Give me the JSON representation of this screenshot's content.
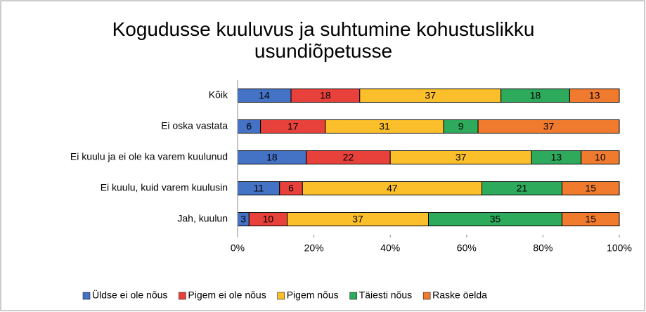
{
  "chart_data": {
    "type": "stacked-bar-horizontal",
    "title": "Kogudusse kuuluvus ja suhtumine kohustuslikku usundiõpetusse",
    "categories": [
      "Kõik",
      "Ei oska vastata",
      "Ei kuulu ja ei ole ka varem kuulunud",
      "Ei kuulu, kuid varem kuulusin",
      "Jah, kuulun"
    ],
    "series": [
      {
        "name": "Üldse ei ole nõus",
        "color": "#4472c4",
        "values": [
          14,
          6,
          18,
          11,
          3
        ]
      },
      {
        "name": "Pigem ei ole nõus",
        "color": "#e8413b",
        "values": [
          18,
          17,
          22,
          6,
          10
        ]
      },
      {
        "name": "Pigem nõus",
        "color": "#fbbf2b",
        "values": [
          37,
          31,
          37,
          47,
          37
        ]
      },
      {
        "name": "Täiesti nõus",
        "color": "#2eaa5c",
        "values": [
          18,
          9,
          13,
          21,
          35
        ]
      },
      {
        "name": "Raske öelda",
        "color": "#f07b2f",
        "values": [
          13,
          37,
          10,
          15,
          15
        ]
      }
    ],
    "xlim": [
      0,
      100
    ],
    "xticks": [
      {
        "value": 0,
        "label": "0%"
      },
      {
        "value": 20,
        "label": "20%"
      },
      {
        "value": 40,
        "label": "40%"
      },
      {
        "value": 60,
        "label": "60%"
      },
      {
        "value": 80,
        "label": "80%"
      },
      {
        "value": 100,
        "label": "100%"
      }
    ],
    "legend": "bottom"
  }
}
